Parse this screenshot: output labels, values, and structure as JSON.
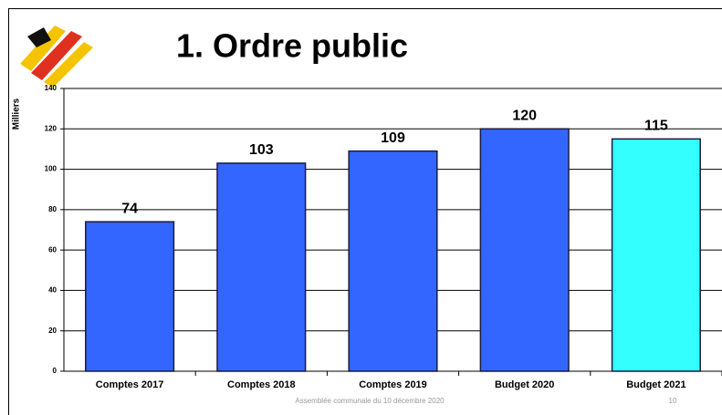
{
  "chart_data": {
    "type": "bar",
    "title": "1. Ordre public",
    "y_label": "Milliers",
    "categories": [
      "Comptes 2017",
      "Comptes 2018",
      "Comptes 2019",
      "Budget 2020",
      "Budget 2021"
    ],
    "values": [
      74,
      103,
      109,
      120,
      115
    ],
    "colors": [
      "#3366ff",
      "#3366ff",
      "#3366ff",
      "#3366ff",
      "#33ffff"
    ],
    "ylim": [
      0,
      140
    ],
    "yticks": [
      0,
      20,
      40,
      60,
      80,
      100,
      120,
      140
    ],
    "grid": true
  },
  "footer": {
    "text": "Assemblée communale du 10 décembre 2020",
    "page": "10"
  }
}
